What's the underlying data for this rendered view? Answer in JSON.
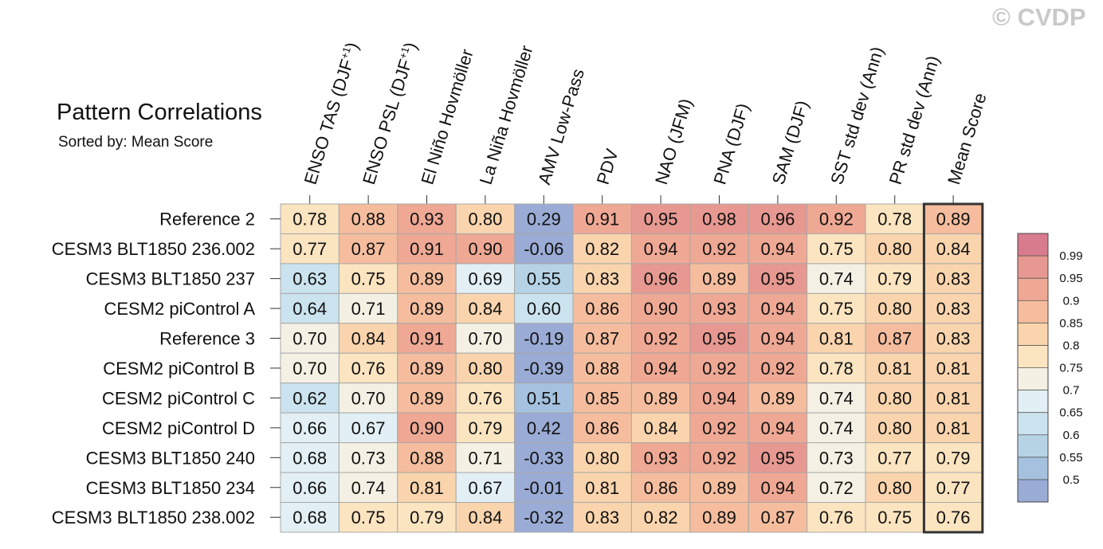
{
  "watermark": "© CVDP",
  "chart_data": {
    "type": "heatmap",
    "title": "Pattern Correlations",
    "subtitle": "Sorted by: Mean Score",
    "columns": [
      "ENSO TAS (DJF+1)",
      "ENSO PSL (DJF+1)",
      "El Niño Hovmöller",
      "La Niña Hovmöller",
      "AMV Low-Pass",
      "PDV",
      "NAO (JFM)",
      "PNA (DJF)",
      "SAM (DJF)",
      "SST std dev (Ann)",
      "PR std dev (Ann)",
      "Mean Score"
    ],
    "rows": [
      "Reference 2",
      "CESM3 BLT1850 236.002",
      "CESM3 BLT1850 237",
      "CESM2 piControl A",
      "Reference 3",
      "CESM2 piControl B",
      "CESM2 piControl C",
      "CESM2 piControl D",
      "CESM3 BLT1850 240",
      "CESM3 BLT1850 234",
      "CESM3 BLT1850 238.002"
    ],
    "values": [
      [
        "0.78",
        "0.88",
        "0.93",
        "0.80",
        "0.29",
        "0.91",
        "0.95",
        "0.98",
        "0.96",
        "0.92",
        "0.78",
        "0.89"
      ],
      [
        "0.77",
        "0.87",
        "0.91",
        "0.90",
        "-0.06",
        "0.82",
        "0.94",
        "0.92",
        "0.94",
        "0.75",
        "0.80",
        "0.84"
      ],
      [
        "0.63",
        "0.75",
        "0.89",
        "0.69",
        "0.55",
        "0.83",
        "0.96",
        "0.89",
        "0.95",
        "0.74",
        "0.79",
        "0.83"
      ],
      [
        "0.64",
        "0.71",
        "0.89",
        "0.84",
        "0.60",
        "0.86",
        "0.90",
        "0.93",
        "0.94",
        "0.75",
        "0.80",
        "0.83"
      ],
      [
        "0.70",
        "0.84",
        "0.91",
        "0.70",
        "-0.19",
        "0.87",
        "0.92",
        "0.95",
        "0.94",
        "0.81",
        "0.87",
        "0.83"
      ],
      [
        "0.70",
        "0.76",
        "0.89",
        "0.80",
        "-0.39",
        "0.88",
        "0.94",
        "0.92",
        "0.92",
        "0.78",
        "0.81",
        "0.81"
      ],
      [
        "0.62",
        "0.70",
        "0.89",
        "0.76",
        "0.51",
        "0.85",
        "0.89",
        "0.94",
        "0.89",
        "0.74",
        "0.80",
        "0.81"
      ],
      [
        "0.66",
        "0.67",
        "0.90",
        "0.79",
        "0.42",
        "0.86",
        "0.84",
        "0.92",
        "0.94",
        "0.74",
        "0.80",
        "0.81"
      ],
      [
        "0.68",
        "0.73",
        "0.88",
        "0.71",
        "-0.33",
        "0.80",
        "0.93",
        "0.92",
        "0.95",
        "0.73",
        "0.77",
        "0.79"
      ],
      [
        "0.66",
        "0.74",
        "0.81",
        "0.67",
        "-0.01",
        "0.81",
        "0.86",
        "0.89",
        "0.94",
        "0.72",
        "0.80",
        "0.77"
      ],
      [
        "0.68",
        "0.75",
        "0.79",
        "0.84",
        "-0.32",
        "0.83",
        "0.82",
        "0.89",
        "0.87",
        "0.76",
        "0.75",
        "0.76"
      ]
    ],
    "colorbar": {
      "labels": [
        "0.99",
        "0.95",
        "0.9",
        "0.85",
        "0.8",
        "0.75",
        "0.7",
        "0.65",
        "0.6",
        "0.55",
        "0.5"
      ],
      "colors_top_to_bottom": [
        "#d87b8d",
        "#e79890",
        "#efa894",
        "#f5bd9e",
        "#f9d4ad",
        "#fbe4c0",
        "#f4f1e4",
        "#e2eff4",
        "#cbe3ee",
        "#b6d3e6",
        "#a4c2df",
        "#9aabd5"
      ],
      "range": [
        0.5,
        0.99
      ]
    },
    "highlighted_column": "Mean Score"
  }
}
